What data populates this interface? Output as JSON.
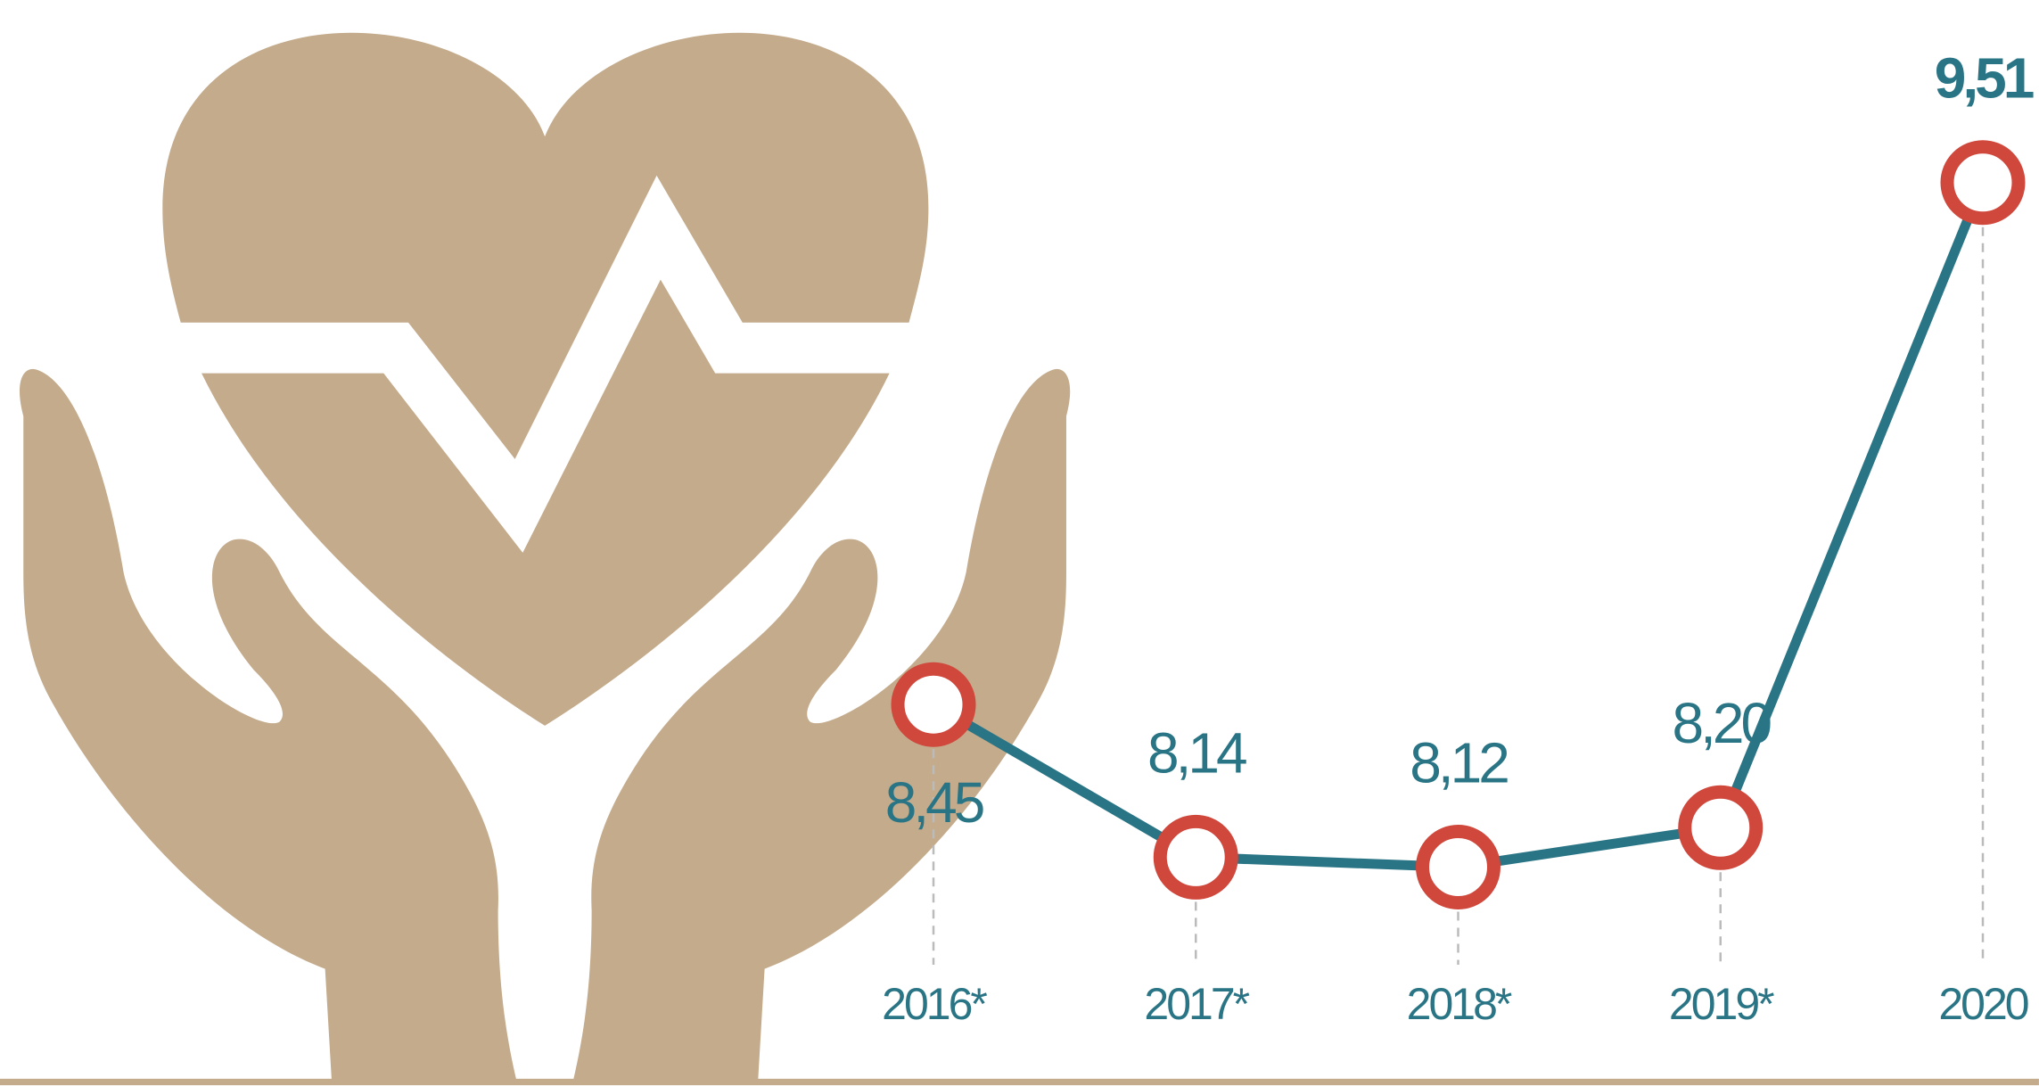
{
  "chart_data": {
    "type": "line",
    "categories": [
      "2016*",
      "2017*",
      "2018*",
      "2019*",
      "2020"
    ],
    "values": [
      8.45,
      8.14,
      8.12,
      8.2,
      9.51
    ],
    "value_labels": [
      "8,45",
      "8,14",
      "8,12",
      "8,20",
      "9,51"
    ],
    "ylim": [
      7.9,
      9.6
    ],
    "color": "#2a7585",
    "marker_color": "#d0473c"
  }
}
